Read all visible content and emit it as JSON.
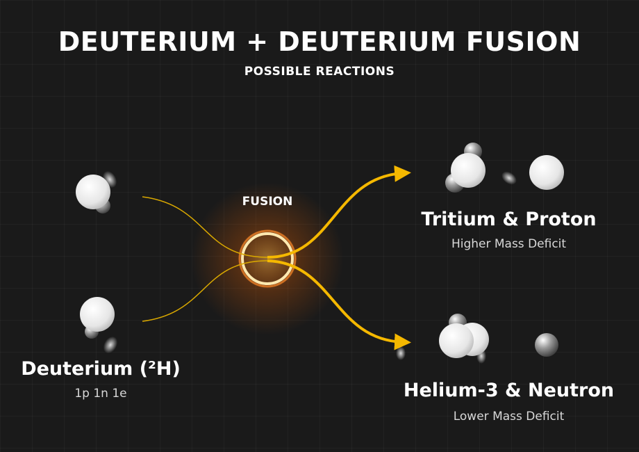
{
  "title": "DEUTERIUM + DEUTERIUM FUSION",
  "subtitle": "POSSIBLE REACTIONS",
  "fusion_label": "FUSION",
  "reactant": {
    "name": "Deuterium (²H)",
    "composition": "1p 1n 1e"
  },
  "products": [
    {
      "name": "Tritium & Proton",
      "note": "Higher Mass Deficit"
    },
    {
      "name": "Helium-3 & Neutron",
      "note": "Lower Mass Deficit"
    }
  ],
  "colors": {
    "arrow": "#f5b800",
    "glow": "#ff7a1a",
    "background": "#1a1a1a"
  }
}
